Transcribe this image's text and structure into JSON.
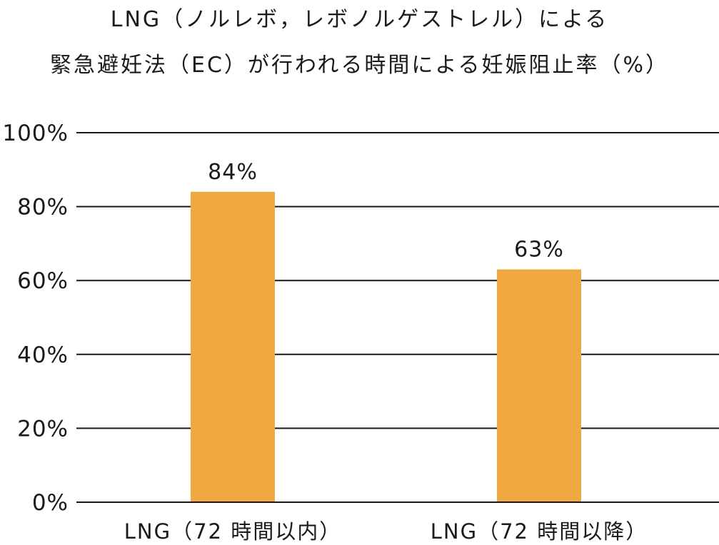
{
  "chart_data": {
    "type": "bar",
    "title_lines": [
      "LNG（ノルレボ，レボノルゲストレル）による",
      "緊急避妊法（EC）が行われる時間による妊娠阻止率（%）"
    ],
    "categories": [
      "LNG（72 時間以内）",
      "LNG（72 時間以降）"
    ],
    "values": [
      84,
      63
    ],
    "data_labels": [
      "84%",
      "63%"
    ],
    "y_ticks": [
      0,
      20,
      40,
      60,
      80,
      100
    ],
    "y_tick_labels": [
      "0%",
      "20%",
      "40%",
      "60%",
      "80%",
      "100%"
    ],
    "ylim": [
      0,
      100
    ],
    "grid": true,
    "bar_color": "#f0a940",
    "grid_color": "#1a1a1a"
  }
}
